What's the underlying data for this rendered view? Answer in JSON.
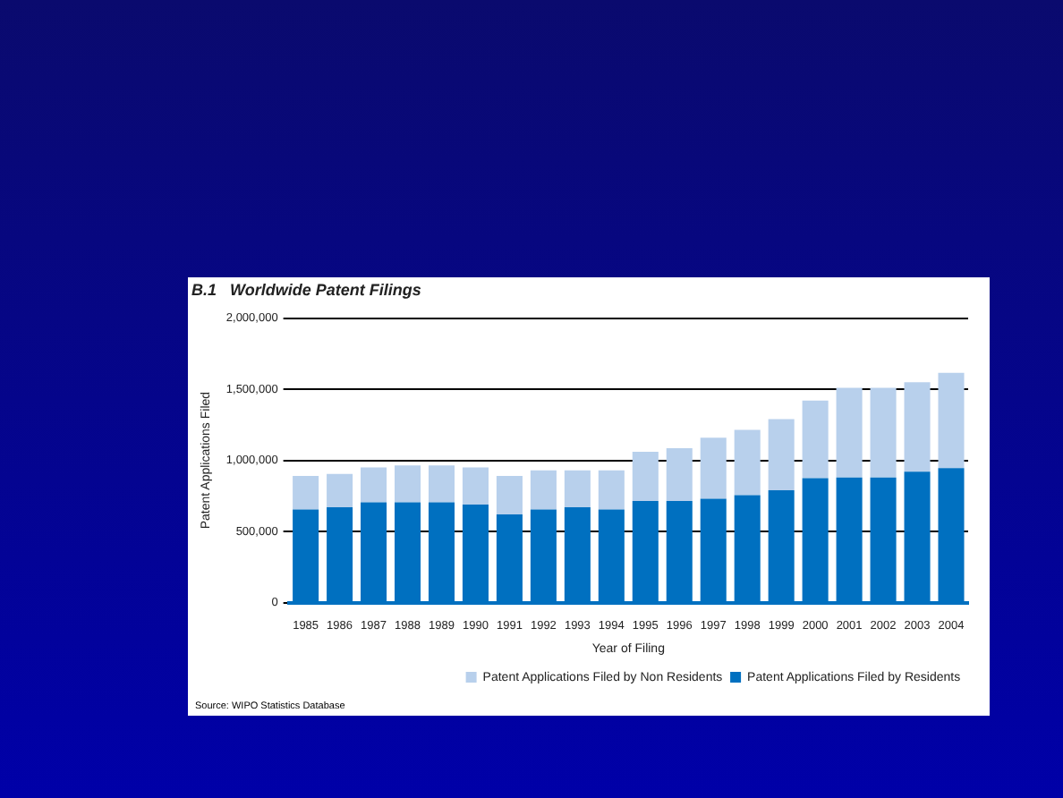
{
  "chart_data": {
    "type": "bar",
    "title": "B.1   Worldwide Patent Filings",
    "xlabel": "Year of Filing",
    "ylabel": "Patent Applications Filed",
    "categories": [
      "1985",
      "1986",
      "1987",
      "1988",
      "1989",
      "1990",
      "1991",
      "1992",
      "1993",
      "1994",
      "1995",
      "1996",
      "1997",
      "1998",
      "1999",
      "2000",
      "2001",
      "2002",
      "2003",
      "2004"
    ],
    "series": [
      {
        "name": "Patent Applications Filed by Residents",
        "color": "#0070c0",
        "values": [
          655000,
          670000,
          705000,
          705000,
          705000,
          690000,
          620000,
          655000,
          670000,
          655000,
          715000,
          715000,
          730000,
          755000,
          790000,
          875000,
          880000,
          880000,
          920000,
          945000
        ]
      },
      {
        "name": "Patent Applications Filed by Non Residents",
        "color": "#b8d0ec",
        "values": [
          235000,
          235000,
          245000,
          260000,
          260000,
          260000,
          270000,
          275000,
          260000,
          275000,
          345000,
          370000,
          430000,
          460000,
          500000,
          545000,
          630000,
          630000,
          630000,
          670000
        ]
      }
    ],
    "stacked": true,
    "ylim": [
      0,
      2000000
    ],
    "yticks": [
      {
        "value": 0,
        "label": "0"
      },
      {
        "value": 500000,
        "label": "500,000"
      },
      {
        "value": 1000000,
        "label": "1,000,000"
      },
      {
        "value": 1500000,
        "label": "1,500,000"
      },
      {
        "value": 2000000,
        "label": "2,000,000"
      }
    ],
    "grid": "y",
    "legend": "bottom right",
    "annotations": [
      "Source: WIPO Statistics Database"
    ]
  }
}
